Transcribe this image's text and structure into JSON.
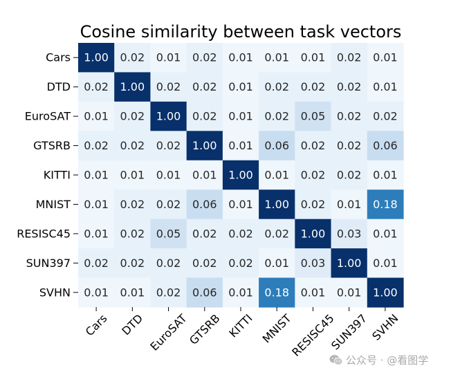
{
  "chart_data": {
    "type": "heatmap",
    "title": "Cosine similarity between task vectors",
    "xlabel": "",
    "ylabel": "",
    "x_categories": [
      "Cars",
      "DTD",
      "EuroSAT",
      "GTSRB",
      "KITTI",
      "MNIST",
      "RESISC45",
      "SUN397",
      "SVHN"
    ],
    "y_categories": [
      "Cars",
      "DTD",
      "EuroSAT",
      "GTSRB",
      "KITTI",
      "MNIST",
      "RESISC45",
      "SUN397",
      "SVHN"
    ],
    "values": [
      [
        1.0,
        0.02,
        0.01,
        0.02,
        0.01,
        0.01,
        0.01,
        0.02,
        0.01
      ],
      [
        0.02,
        1.0,
        0.02,
        0.02,
        0.01,
        0.02,
        0.02,
        0.02,
        0.01
      ],
      [
        0.01,
        0.02,
        1.0,
        0.02,
        0.01,
        0.02,
        0.05,
        0.02,
        0.02
      ],
      [
        0.02,
        0.02,
        0.02,
        1.0,
        0.01,
        0.06,
        0.02,
        0.02,
        0.06
      ],
      [
        0.01,
        0.01,
        0.01,
        0.01,
        1.0,
        0.01,
        0.02,
        0.02,
        0.01
      ],
      [
        0.01,
        0.02,
        0.02,
        0.06,
        0.01,
        1.0,
        0.02,
        0.01,
        0.18
      ],
      [
        0.01,
        0.02,
        0.05,
        0.02,
        0.02,
        0.02,
        1.0,
        0.03,
        0.01
      ],
      [
        0.02,
        0.02,
        0.02,
        0.02,
        0.02,
        0.01,
        0.03,
        1.0,
        0.01
      ],
      [
        0.01,
        0.01,
        0.02,
        0.06,
        0.01,
        0.18,
        0.01,
        0.01,
        1.0
      ]
    ],
    "colormap": "Blues",
    "colormap_colors": [
      "#f7fbff",
      "#deebf7",
      "#c6dbef",
      "#9ecae1",
      "#6baed6",
      "#4292c6",
      "#2171b5",
      "#08519c",
      "#08306b"
    ],
    "annotation_colors": {
      "on_light": "#262626",
      "on_dark": "#ffffff"
    },
    "colorbar": false,
    "grid": false
  },
  "watermark": {
    "text": "公众号 · @看图学",
    "icon": "wechat-icon"
  }
}
